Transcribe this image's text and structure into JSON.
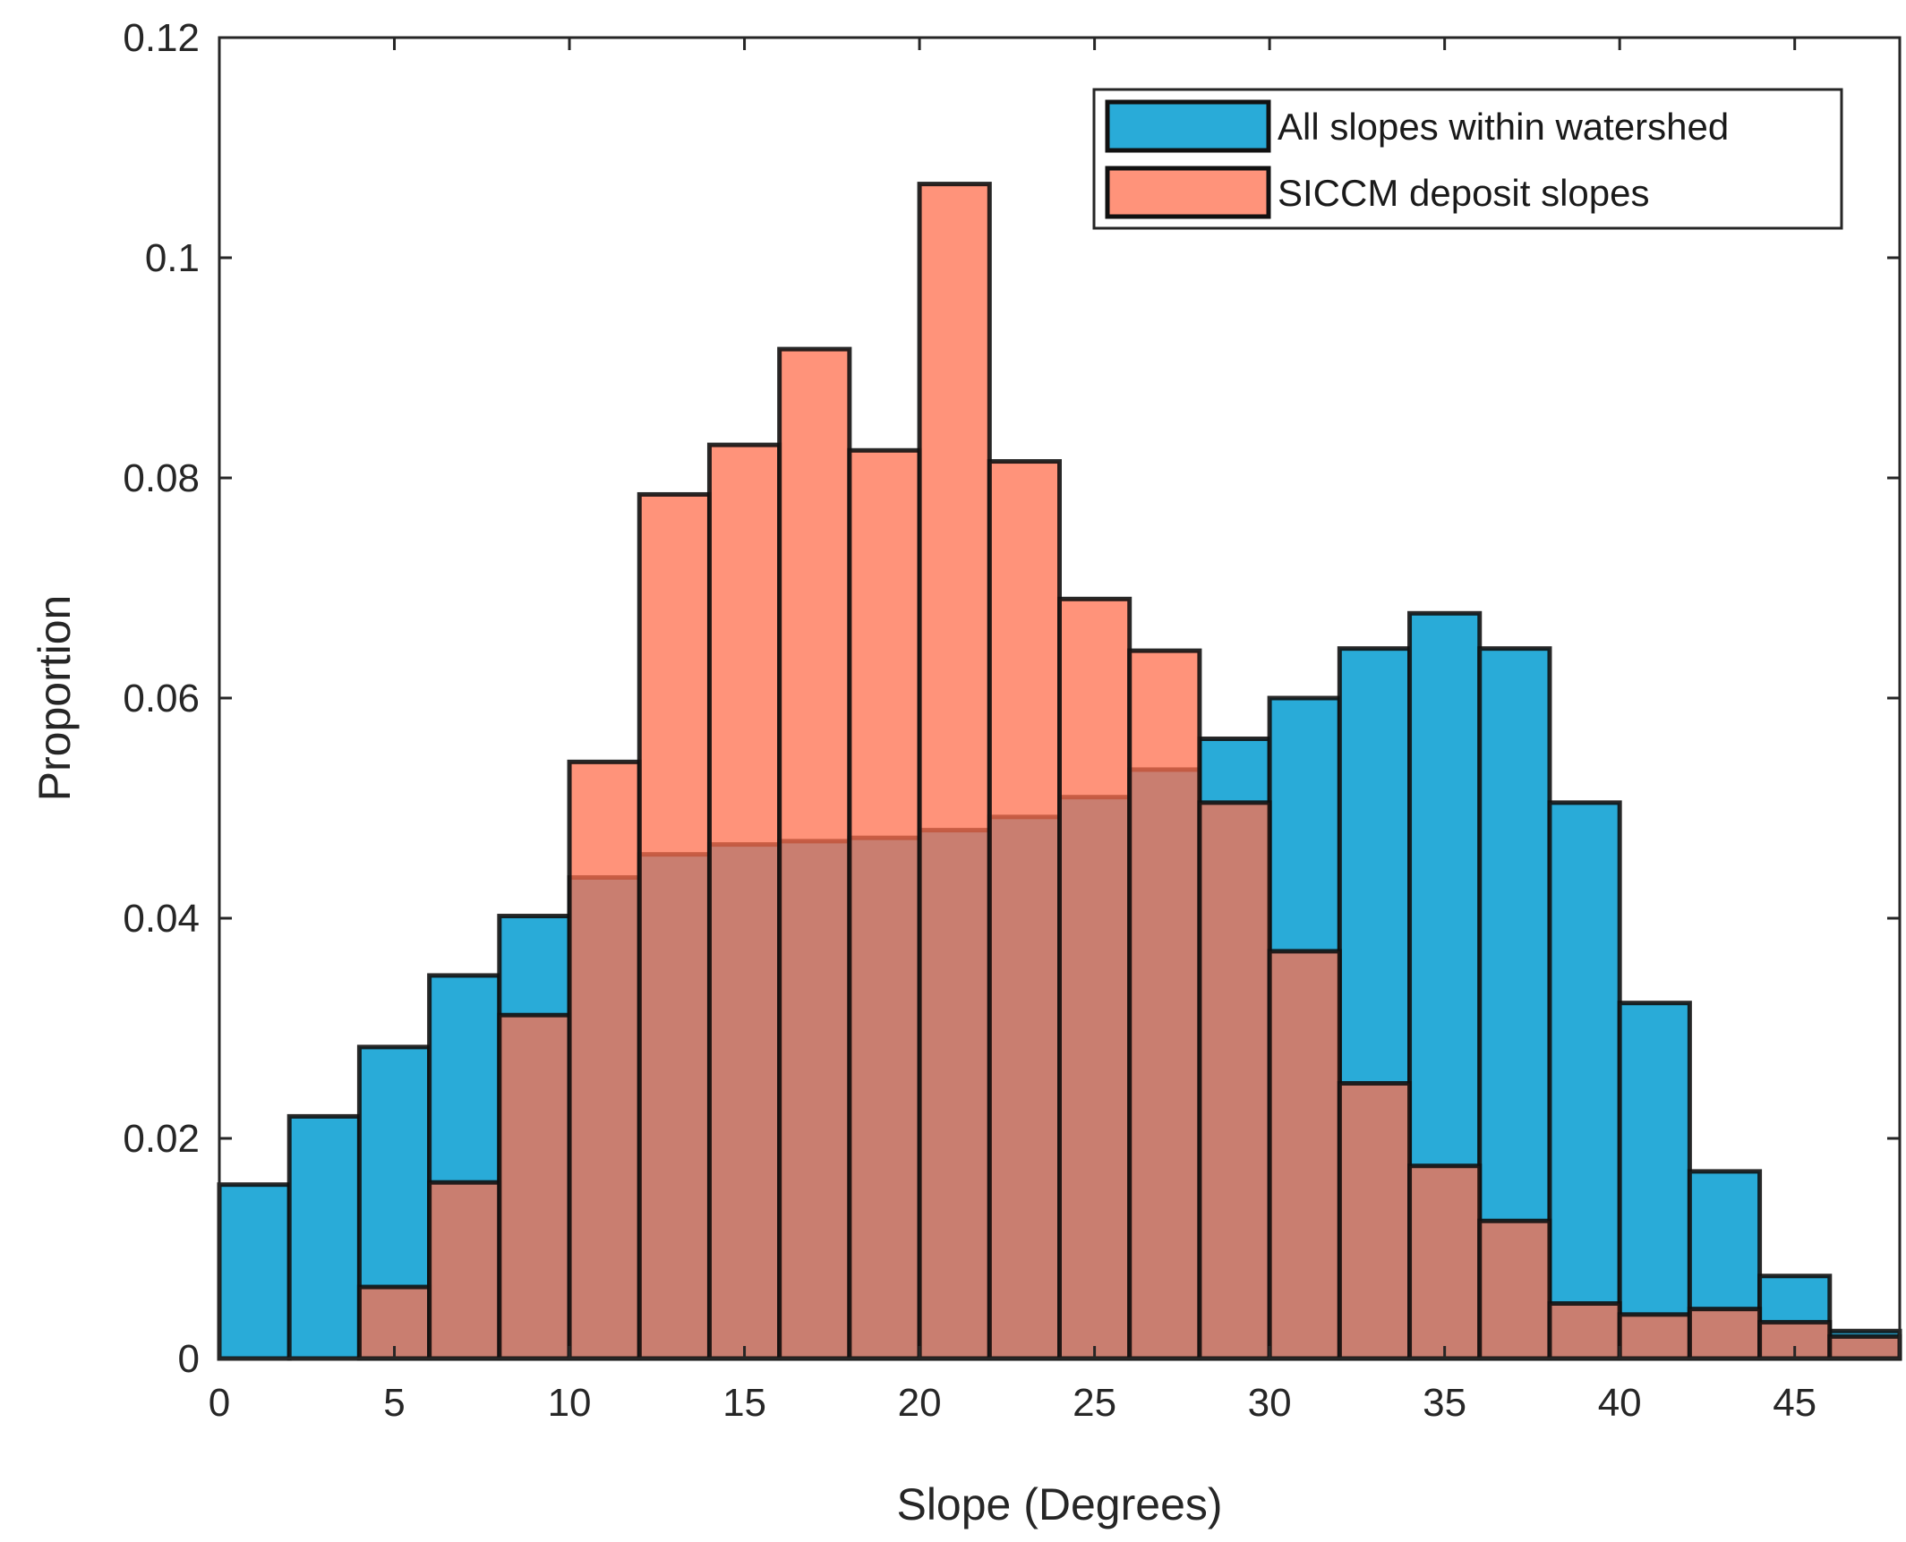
{
  "chart_data": {
    "type": "bar",
    "title": "",
    "xlabel": "Slope (Degrees)",
    "ylabel": "Proportion",
    "xlim": [
      0,
      48
    ],
    "ylim": [
      0,
      0.12
    ],
    "bin_width": 2,
    "bin_edges": [
      0,
      2,
      4,
      6,
      8,
      10,
      12,
      14,
      16,
      18,
      20,
      22,
      24,
      26,
      28,
      30,
      32,
      34,
      36,
      38,
      40,
      42,
      44,
      46,
      48
    ],
    "x_ticks": [
      0,
      5,
      10,
      15,
      20,
      25,
      30,
      35,
      40,
      45
    ],
    "x_tick_labels": [
      "0",
      "5",
      "10",
      "15",
      "20",
      "25",
      "30",
      "35",
      "40",
      "45"
    ],
    "y_ticks": [
      0,
      0.02,
      0.04,
      0.06,
      0.08,
      0.1,
      0.12
    ],
    "y_tick_labels": [
      "0",
      "0.02",
      "0.04",
      "0.06",
      "0.08",
      "0.1",
      "0.12"
    ],
    "legend_position": "top-right",
    "series": [
      {
        "name": "All slopes within watershed",
        "color": "#29abd8",
        "values": [
          0.0158,
          0.022,
          0.0283,
          0.0348,
          0.0402,
          0.0437,
          0.0458,
          0.0467,
          0.047,
          0.0473,
          0.048,
          0.0492,
          0.051,
          0.0535,
          0.0563,
          0.06,
          0.0645,
          0.0677,
          0.0645,
          0.0505,
          0.0323,
          0.017,
          0.0075,
          0.0025
        ]
      },
      {
        "name": "SICCM deposit slopes",
        "color": "#ff6f4d",
        "opacity": 0.75,
        "values": [
          0,
          0,
          0.0065,
          0.016,
          0.0312,
          0.0542,
          0.0785,
          0.083,
          0.0917,
          0.0825,
          0.1067,
          0.0815,
          0.069,
          0.0643,
          0.0505,
          0.037,
          0.025,
          0.0175,
          0.0125,
          0.005,
          0.004,
          0.0045,
          0.0033,
          0.002
        ]
      }
    ]
  }
}
